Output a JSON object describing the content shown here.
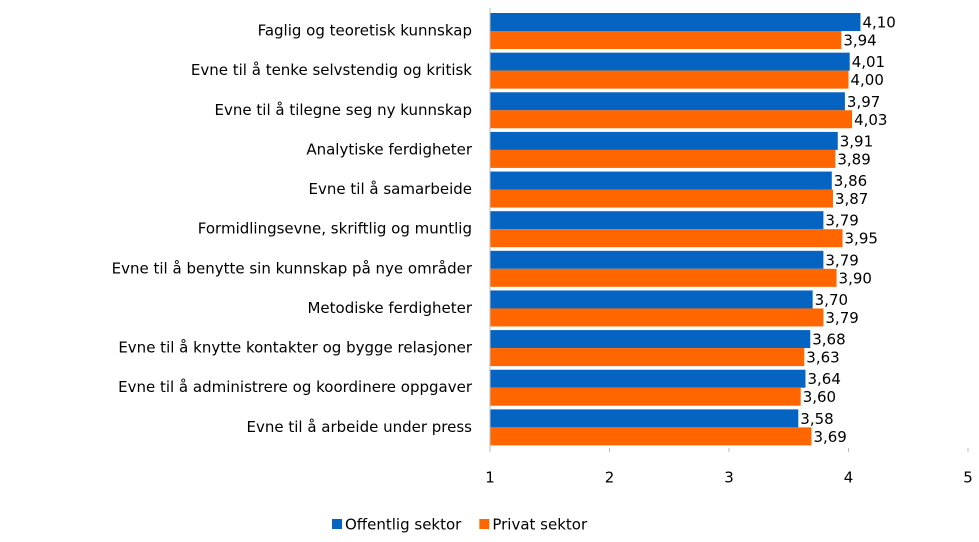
{
  "chart_data": {
    "type": "hbar",
    "categories": [
      "Faglig og teoretisk kunnskap",
      "Evne til å tenke selvstendig og kritisk",
      "Evne til å tilegne seg ny kunnskap",
      "Analytiske ferdigheter",
      "Evne til å samarbeide",
      "Formidlingsevne, skriftlig og muntlig",
      "Evne til å benytte sin kunnskap på nye områder",
      "Metodiske ferdigheter",
      "Evne til å knytte kontakter og bygge relasjoner",
      "Evne til å administrere og koordinere oppgaver",
      "Evne til å arbeide under press"
    ],
    "series": [
      {
        "name": "Offentlig sektor",
        "color": "#0563c1",
        "values": [
          4.1,
          4.01,
          3.97,
          3.91,
          3.86,
          3.79,
          3.79,
          3.7,
          3.68,
          3.64,
          3.58
        ],
        "value_labels": [
          "4,10",
          "4,01",
          "3,97",
          "3,91",
          "3,86",
          "3,79",
          "3,79",
          "3,70",
          "3,68",
          "3,64",
          "3,58"
        ]
      },
      {
        "name": "Privat sektor",
        "color": "#ff6600",
        "values": [
          3.94,
          4.0,
          4.03,
          3.89,
          3.87,
          3.95,
          3.9,
          3.79,
          3.63,
          3.6,
          3.69
        ],
        "value_labels": [
          "3,94",
          "4,00",
          "4,03",
          "3,89",
          "3,87",
          "3,95",
          "3,90",
          "3,79",
          "3,63",
          "3,60",
          "3,69"
        ]
      }
    ],
    "xlim": [
      1,
      5
    ],
    "xticks": [
      1,
      2,
      3,
      4,
      5
    ],
    "legend": "bottom"
  }
}
